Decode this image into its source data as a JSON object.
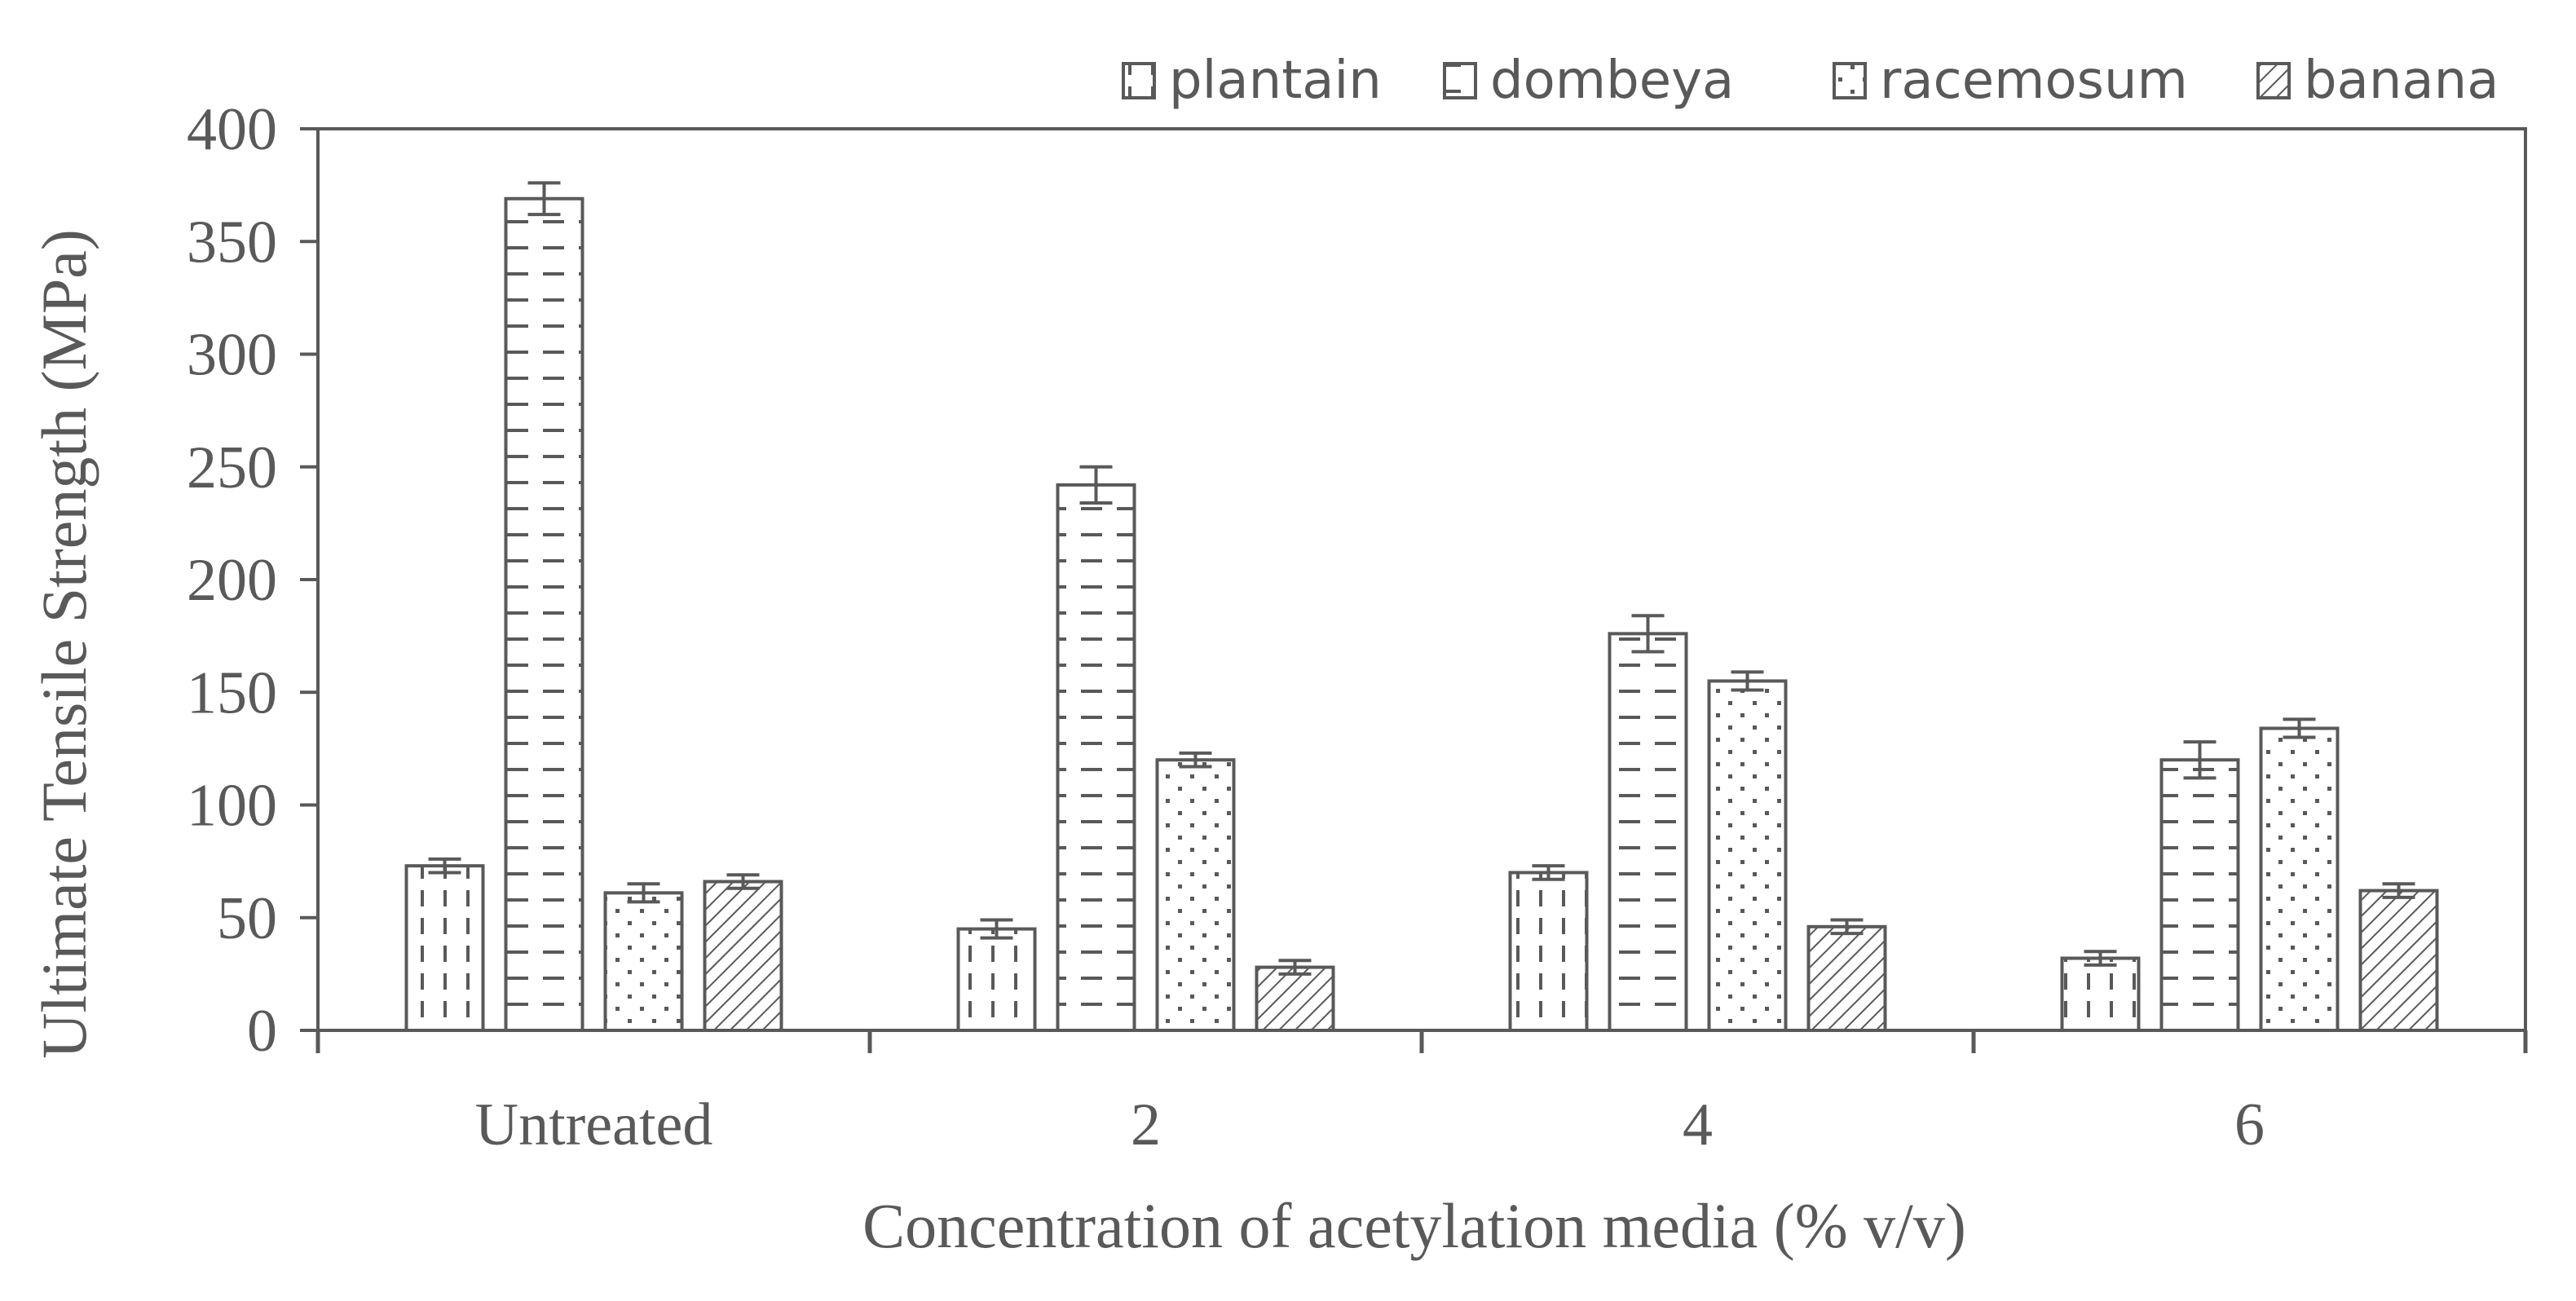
{
  "chart_data": {
    "type": "bar",
    "title": "",
    "xlabel": "Concentration of acetylation media (% v/v)",
    "ylabel": "Ultimate Tensile Strength  (MPa)",
    "ylim": [
      0,
      400
    ],
    "yticks": [
      0,
      50,
      100,
      150,
      200,
      250,
      300,
      350,
      400
    ],
    "categories": [
      "Untreated",
      "2",
      "4",
      "6"
    ],
    "series": [
      {
        "name": "plantain",
        "pattern": "vertical-dashes",
        "values": [
          73,
          45,
          70,
          32
        ],
        "errors": [
          3,
          4,
          3,
          3
        ]
      },
      {
        "name": "dombeya",
        "pattern": "horizontal-dashes",
        "values": [
          369,
          242,
          176,
          120
        ],
        "errors": [
          7,
          8,
          8,
          8
        ]
      },
      {
        "name": "racemosum",
        "pattern": "dots",
        "values": [
          61,
          120,
          155,
          134
        ],
        "errors": [
          4,
          3,
          4,
          4
        ]
      },
      {
        "name": "banana",
        "pattern": "diagonal-lines",
        "values": [
          66,
          28,
          46,
          62
        ],
        "errors": [
          3,
          3,
          3,
          3
        ]
      }
    ],
    "legend_position": "top-right",
    "grid": false,
    "colors": {
      "axis": "#595959",
      "bar_fill": "#ffffff",
      "pattern": "#595959"
    }
  }
}
